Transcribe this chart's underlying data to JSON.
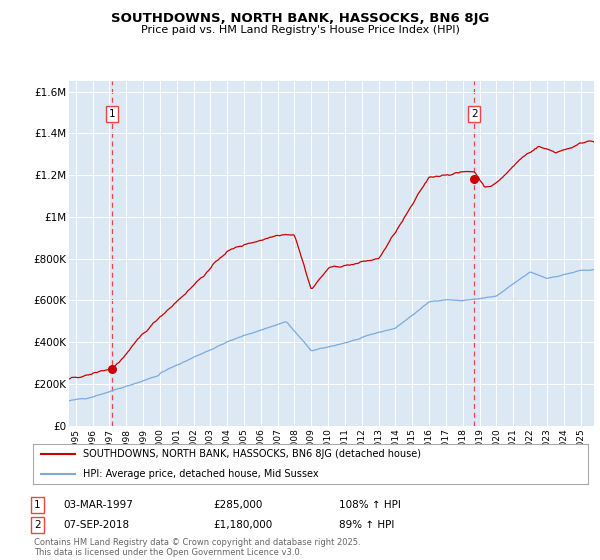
{
  "title1": "SOUTHDOWNS, NORTH BANK, HASSOCKS, BN6 8JG",
  "title2": "Price paid vs. HM Land Registry's House Price Index (HPI)",
  "bg_color": "#dce9f5",
  "fig_bg_color": "#ffffff",
  "red_color": "#cc0000",
  "blue_color": "#7aabdc",
  "red_dashed_color": "#ee4444",
  "marker1_x_year": 1997.17,
  "marker1_y": 285000,
  "marker2_x_year": 2018.68,
  "marker2_y": 1180000,
  "legend_line1": "SOUTHDOWNS, NORTH BANK, HASSOCKS, BN6 8JG (detached house)",
  "legend_line2": "HPI: Average price, detached house, Mid Sussex",
  "footer": "Contains HM Land Registry data © Crown copyright and database right 2025.\nThis data is licensed under the Open Government Licence v3.0.",
  "ylim": [
    0,
    1650000
  ],
  "yticks": [
    0,
    200000,
    400000,
    600000,
    800000,
    1000000,
    1200000,
    1400000,
    1600000
  ],
  "ytick_labels": [
    "£0",
    "£200K",
    "£400K",
    "£600K",
    "£800K",
    "£1M",
    "£1.2M",
    "£1.4M",
    "£1.6M"
  ],
  "xlim_start": 1994.6,
  "xlim_end": 2025.8,
  "xticks": [
    1995,
    1996,
    1997,
    1998,
    1999,
    2000,
    2001,
    2002,
    2003,
    2004,
    2005,
    2006,
    2007,
    2008,
    2009,
    2010,
    2011,
    2012,
    2013,
    2014,
    2015,
    2016,
    2017,
    2018,
    2019,
    2020,
    2021,
    2022,
    2023,
    2024,
    2025
  ]
}
